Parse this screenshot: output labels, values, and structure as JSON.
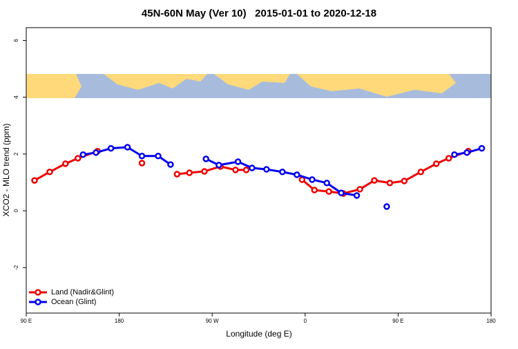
{
  "chart_data": {
    "type": "line",
    "title": "45N-60N May (Ver 10)   2015-01-01 to 2020-12-18",
    "x_label": "Longitude (deg E)",
    "y_label": "XCO2 - MLO trend (ppm)",
    "xlim": [
      90,
      540
    ],
    "ylim": [
      -3.6,
      6.45
    ],
    "xticks": [
      {
        "value": 90,
        "label": "90 E"
      },
      {
        "value": 180,
        "label": "180"
      },
      {
        "value": 270,
        "label": "90 W"
      },
      {
        "value": 360,
        "label": "0"
      },
      {
        "value": 450,
        "label": "90 E"
      },
      {
        "value": 540,
        "label": "180"
      }
    ],
    "yticks": [
      -2,
      0,
      2,
      4,
      6
    ],
    "legend": "bottom-left",
    "series": [
      {
        "name": "Land (Nadir&Glint)",
        "color": "#ee0000",
        "x": [
          98,
          112.7,
          128,
          140,
          159,
          159,
          202,
          202,
          236,
          248,
          262.5,
          278,
          292.6,
          303,
          303,
          357,
          369,
          383,
          397,
          413,
          427,
          442,
          456,
          472,
          487,
          499,
          518
        ],
        "values": [
          1.07,
          1.37,
          1.66,
          1.85,
          2.1,
          null,
          1.68,
          null,
          1.29,
          1.34,
          1.39,
          1.56,
          1.44,
          1.44,
          null,
          1.1,
          0.73,
          0.68,
          0.61,
          0.76,
          1.07,
          0.98,
          1.05,
          1.37,
          1.66,
          1.85,
          2.1
        ]
      },
      {
        "name": "Ocean (Glint)",
        "color": "#0000ee",
        "x": [
          145,
          157.5,
          172,
          188,
          202,
          217.7,
          229.7,
          229.7,
          264,
          276.5,
          295,
          308.6,
          322.6,
          338,
          352,
          366.8,
          381,
          395,
          410,
          410,
          439,
          439,
          504.5,
          516.6,
          531
        ],
        "values": [
          1.98,
          2.05,
          2.2,
          2.24,
          1.93,
          1.93,
          1.63,
          null,
          1.83,
          1.61,
          1.73,
          1.51,
          1.46,
          1.37,
          1.27,
          1.1,
          0.98,
          0.63,
          0.54,
          null,
          0.15,
          null,
          1.98,
          2.05,
          2.2
        ]
      }
    ]
  }
}
